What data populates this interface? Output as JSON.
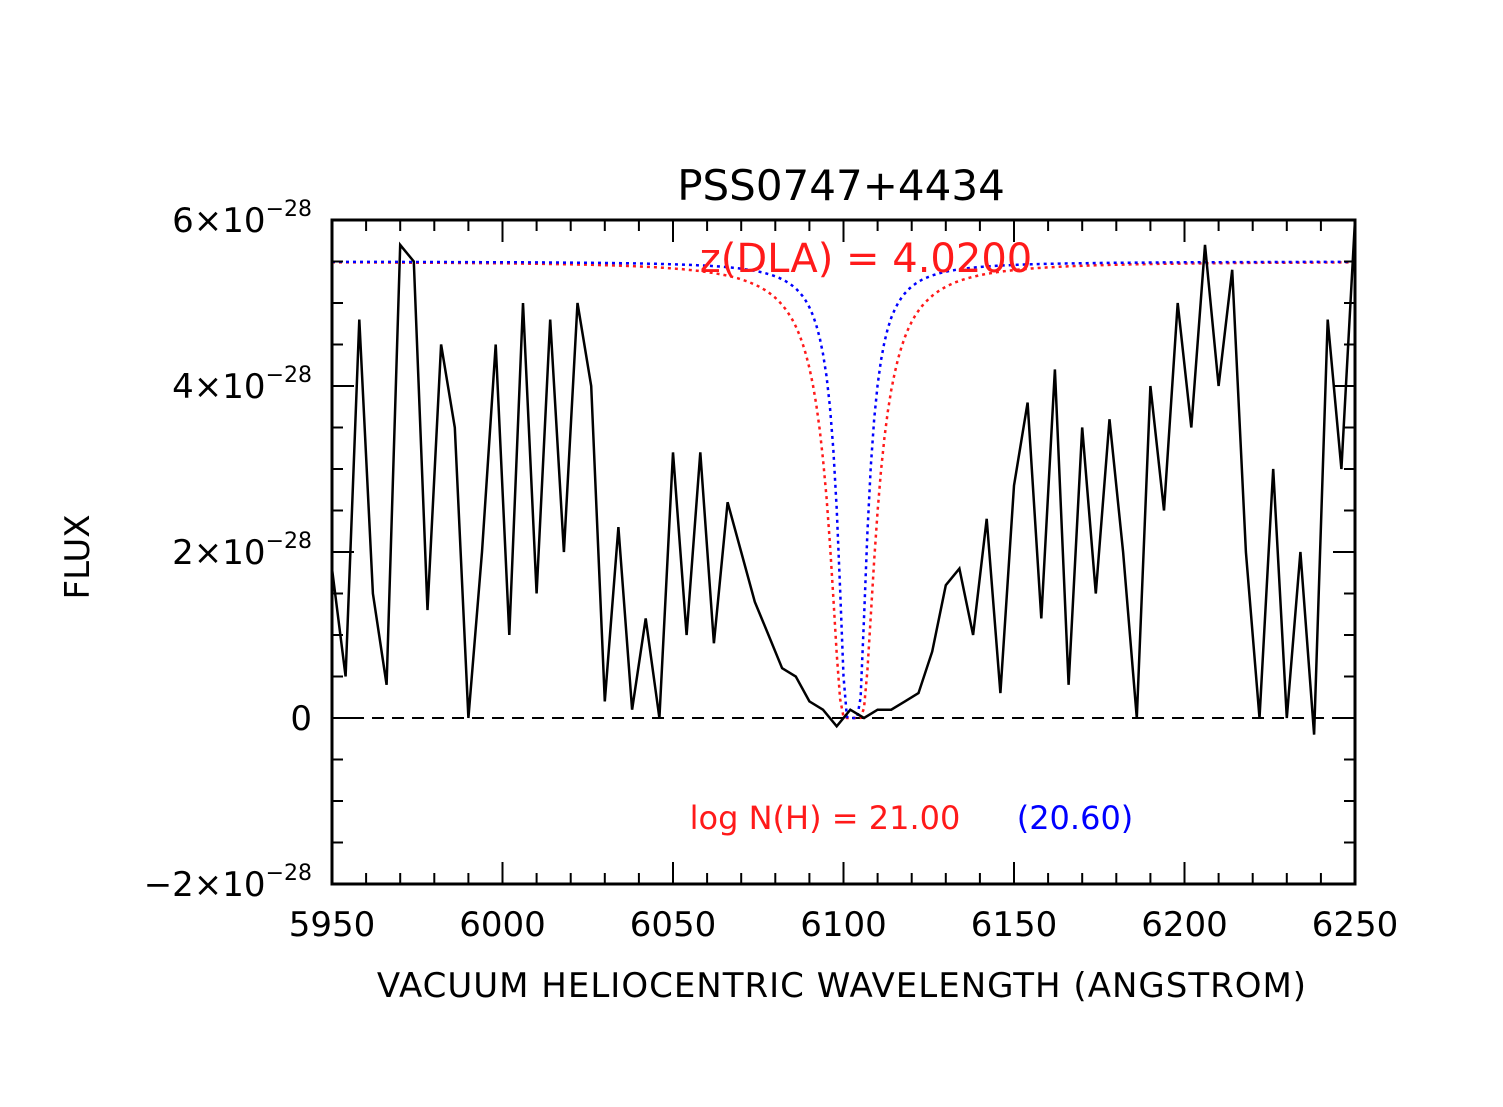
{
  "chart_data": {
    "type": "line",
    "title": "PSS0747+4434",
    "xlabel": "VACUUM HELIOCENTRIC WAVELENGTH (ANGSTROM)",
    "ylabel": "FLUX",
    "xlim": [
      5950,
      6250
    ],
    "ylim": [
      -2e-28,
      6e-28
    ],
    "x_ticks": [
      5950,
      6000,
      6050,
      6100,
      6150,
      6200,
      6250
    ],
    "x_tick_labels": [
      "5950",
      "6000",
      "6050",
      "6100",
      "6150",
      "6200",
      "6250"
    ],
    "y_ticks": [
      {
        "value": -2e-28,
        "label": "−2×10",
        "exp": "−28"
      },
      {
        "value": 0,
        "label": "0",
        "exp": ""
      },
      {
        "value": 2e-28,
        "label": "2×10",
        "exp": "−28"
      },
      {
        "value": 4e-28,
        "label": "4×10",
        "exp": "−28"
      },
      {
        "value": 6e-28,
        "label": "6×10",
        "exp": "−28"
      }
    ],
    "zero_line": {
      "y": 0,
      "style": "dashed",
      "color": "#000000"
    },
    "annotations": {
      "redshift": "z(DLA) = 4.0200",
      "column_density": "log N(H) = 21.00",
      "column_density_alt": "(20.60)"
    },
    "models": {
      "continuum": 5.5e-28,
      "z_abs": 4.02,
      "series": [
        {
          "logN": 21.0,
          "color": "#ff1a1a",
          "style": "dotted"
        },
        {
          "logN": 20.6,
          "color": "#0000ff",
          "style": "dotted"
        }
      ]
    },
    "spectrum": {
      "color": "#000000",
      "x": [
        5950,
        5954,
        5958,
        5962,
        5966,
        5970,
        5974,
        5978,
        5982,
        5986,
        5990,
        5994,
        5998,
        6002,
        6006,
        6010,
        6014,
        6018,
        6022,
        6026,
        6030,
        6034,
        6038,
        6042,
        6046,
        6050,
        6054,
        6058,
        6062,
        6066,
        6070,
        6074,
        6078,
        6082,
        6086,
        6090,
        6094,
        6098,
        6102,
        6106,
        6110,
        6114,
        6118,
        6122,
        6126,
        6130,
        6134,
        6138,
        6142,
        6146,
        6150,
        6154,
        6158,
        6162,
        6166,
        6170,
        6174,
        6178,
        6182,
        6186,
        6190,
        6194,
        6198,
        6202,
        6206,
        6210,
        6214,
        6218,
        6222,
        6226,
        6230,
        6234,
        6238,
        6242,
        6246,
        6250
      ],
      "y": [
        1.8e-28,
        5e-29,
        4.8e-28,
        1.5e-28,
        4e-29,
        5.7e-28,
        5.5e-28,
        1.3e-28,
        4.5e-28,
        3.5e-28,
        0.0,
        2e-28,
        4.5e-28,
        1e-28,
        5e-28,
        1.5e-28,
        4.8e-28,
        2e-28,
        5e-28,
        4e-28,
        2e-29,
        2.3e-28,
        1e-29,
        1.2e-28,
        0.0,
        3.2e-28,
        1e-28,
        3.2e-28,
        9e-29,
        2.6e-28,
        2e-28,
        1.4e-28,
        1e-28,
        6e-29,
        5e-29,
        2e-29,
        1e-29,
        -1e-29,
        1e-29,
        0.0,
        1e-29,
        1e-29,
        2e-29,
        3e-29,
        8e-29,
        1.6e-28,
        1.8e-28,
        1e-28,
        2.4e-28,
        3e-29,
        2.8e-28,
        3.8e-28,
        1.2e-28,
        4.2e-28,
        4e-29,
        3.5e-28,
        1.5e-28,
        3.6e-28,
        2e-28,
        0.0,
        4e-28,
        2.5e-28,
        5e-28,
        3.5e-28,
        5.7e-28,
        4e-28,
        5.4e-28,
        2e-28,
        0.0,
        3e-28,
        0.0,
        2e-28,
        -2e-29,
        4.8e-28,
        3e-28,
        6e-28
      ]
    }
  }
}
